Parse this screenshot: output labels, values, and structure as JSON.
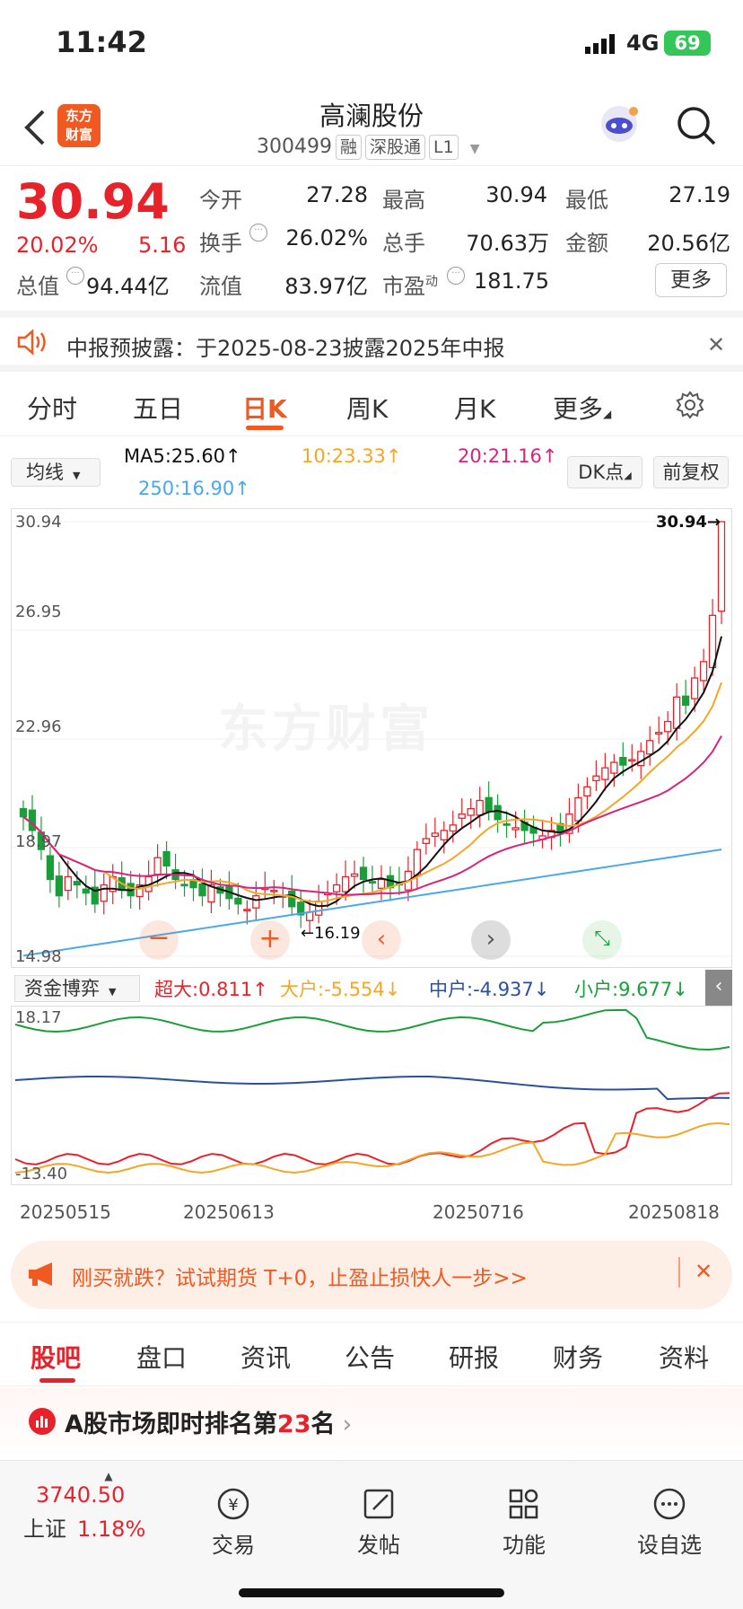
{
  "status": {
    "time": "11:42",
    "network": "4G",
    "battery": "69"
  },
  "header": {
    "logo_line1": "东方",
    "logo_line2": "财富",
    "title": "高澜股份",
    "code": "300499",
    "tags": [
      "融",
      "深股通",
      "L1"
    ]
  },
  "quote": {
    "price": "30.94",
    "change_pct": "20.02%",
    "change": "5.16",
    "fields": [
      {
        "label": "今开",
        "value": "27.28"
      },
      {
        "label": "最高",
        "value": "30.94"
      },
      {
        "label": "最低",
        "value": "27.19"
      },
      {
        "label": "换手",
        "value": "26.02%"
      },
      {
        "label": "总手",
        "value": "70.63万"
      },
      {
        "label": "金额",
        "value": "20.56亿"
      },
      {
        "label": "总值",
        "value": "94.44亿"
      },
      {
        "label": "流值",
        "value": "83.97亿"
      },
      {
        "label": "市盈",
        "value": "181.75"
      }
    ],
    "pe_sup": "动",
    "more": "更多"
  },
  "notice": {
    "text": "中报预披露：于2025-08-23披露2025年中报"
  },
  "tabs": [
    "分时",
    "五日",
    "日K",
    "周K",
    "月K",
    "更多"
  ],
  "chart": {
    "indicator": "均线",
    "ma5": "MA5:25.60↑",
    "ma10": "10:23.33↑",
    "ma20": "20:21.16↑",
    "ma250": "250:16.90↑",
    "dk": "DK点",
    "fq": "前复权",
    "y_labels": [
      "30.94",
      "26.95",
      "22.96",
      "18.97",
      "14.98"
    ],
    "max_label": "30.94→",
    "min_label": "←16.19",
    "watermark": "东方财富",
    "flow_selector": "资金博弈",
    "flow_chaoda": "超大:0.811↑",
    "flow_dahu": "大户:-5.554↓",
    "flow_zhonghu": "中户:-4.937↓",
    "flow_xiaohu": "小户:9.677↓",
    "flow_y": [
      "18.17",
      "-13.40"
    ],
    "dates": [
      "20250515",
      "20250613",
      "20250716",
      "20250818"
    ]
  },
  "colors": {
    "up": "#e8222a",
    "down": "#1a9e3a",
    "ma5": "#111111",
    "ma10": "#f5a623",
    "ma20": "#d6247e",
    "ma250": "#4aa8e8",
    "zhonghu": "#2a4f9e"
  },
  "chart_data": {
    "type": "candlestick",
    "ylim": [
      14.98,
      30.94
    ],
    "last_close": 30.94,
    "low": 16.19,
    "closes": [
      20.1,
      19.6,
      18.9,
      17.8,
      17.2,
      17.9,
      17.6,
      17.3,
      16.9,
      17.6,
      17.9,
      17.4,
      17.2,
      17.6,
      17.9,
      18.6,
      18.3,
      17.8,
      17.6,
      17.5,
      17.2,
      17.6,
      17.3,
      17.1,
      16.9,
      16.7,
      17.2,
      17.5,
      17.4,
      17.2,
      16.8,
      16.5,
      16.6,
      17.0,
      17.3,
      17.6,
      17.9,
      18.0,
      17.8,
      17.7,
      17.8,
      17.5,
      17.6,
      18.1,
      18.9,
      19.3,
      19.5,
      19.6,
      19.8,
      20.2,
      20.4,
      20.7,
      20.3,
      20.0,
      19.8,
      19.7,
      19.6,
      19.5,
      19.4,
      19.6,
      19.5,
      20.2,
      20.8,
      21.2,
      21.6,
      21.9,
      22.1,
      22.0,
      22.2,
      22.5,
      22.9,
      23.2,
      23.6,
      24.5,
      24.2,
      25.2,
      25.8,
      27.5,
      30.94
    ]
  },
  "ad": {
    "text": "刚买就跌？试试期货 T+0，止盈止损快人一步>>"
  },
  "bottom_tabs": [
    "股吧",
    "盘口",
    "资讯",
    "公告",
    "研报",
    "财务",
    "资料"
  ],
  "rank": {
    "prefix": "A股市场即时排名第",
    "num": "23",
    "suffix": "名"
  },
  "index": {
    "value": "3740.50",
    "name": "上证",
    "pct": "1.18%"
  },
  "bottom_nav": [
    "交易",
    "发帖",
    "功能",
    "设自选"
  ]
}
